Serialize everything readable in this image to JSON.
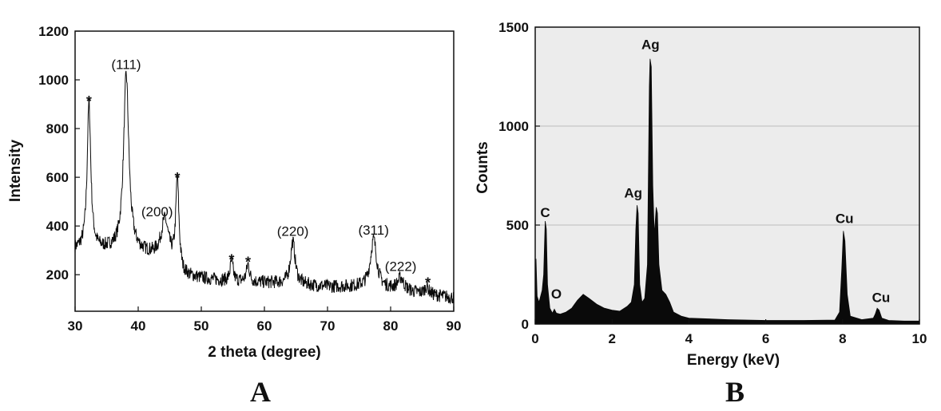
{
  "chart_data": [
    {
      "panel": "A",
      "type": "line",
      "xlabel": "2 theta (degree)",
      "ylabel": "Intensity",
      "xlim": [
        30,
        90
      ],
      "ylim": [
        50,
        1200
      ],
      "xticks": [
        30,
        40,
        50,
        60,
        70,
        80,
        90
      ],
      "yticks": [
        200,
        400,
        600,
        800,
        1000,
        1200
      ],
      "grid": false,
      "baseline": [
        [
          30,
          300
        ],
        [
          36,
          300
        ],
        [
          40,
          290
        ],
        [
          44,
          270
        ],
        [
          47,
          190
        ],
        [
          55,
          170
        ],
        [
          62,
          165
        ],
        [
          70,
          150
        ],
        [
          75,
          150
        ],
        [
          80,
          140
        ],
        [
          85,
          120
        ],
        [
          90,
          105
        ]
      ],
      "peaks": [
        {
          "x": 32.2,
          "y": 900,
          "w": 0.35
        },
        {
          "x": 38.1,
          "y": 1020,
          "w": 0.5
        },
        {
          "x": 44.2,
          "y": 420,
          "w": 0.7
        },
        {
          "x": 46.2,
          "y": 580,
          "w": 0.3
        },
        {
          "x": 54.8,
          "y": 250,
          "w": 0.3
        },
        {
          "x": 57.4,
          "y": 240,
          "w": 0.3
        },
        {
          "x": 64.5,
          "y": 335,
          "w": 0.45
        },
        {
          "x": 77.3,
          "y": 345,
          "w": 0.6
        },
        {
          "x": 81.6,
          "y": 185,
          "w": 0.6
        },
        {
          "x": 85.7,
          "y": 150,
          "w": 0.4
        }
      ],
      "annotations": [
        {
          "text": "*",
          "x": 32.2,
          "y": 925
        },
        {
          "text": "(111)",
          "x": 38.1,
          "y": 1045
        },
        {
          "text": "(200)",
          "x": 43.0,
          "y": 440
        },
        {
          "text": "*",
          "x": 46.2,
          "y": 610
        },
        {
          "text": "*",
          "x": 54.8,
          "y": 275
        },
        {
          "text": "*",
          "x": 57.4,
          "y": 265
        },
        {
          "text": "(220)",
          "x": 64.5,
          "y": 360
        },
        {
          "text": "(311)",
          "x": 77.3,
          "y": 365
        },
        {
          "text": "(222)",
          "x": 81.6,
          "y": 215
        },
        {
          "text": "*",
          "x": 85.9,
          "y": 180
        }
      ]
    },
    {
      "panel": "B",
      "type": "area",
      "xlabel": "Energy (keV)",
      "ylabel": "Counts",
      "xlim": [
        0,
        10
      ],
      "ylim": [
        0,
        1500
      ],
      "xticks": [
        0,
        2,
        4,
        6,
        8,
        10
      ],
      "yticks": [
        0,
        500,
        1000,
        1500
      ],
      "grid": true,
      "background": "#ececec",
      "fill": "#0a0a0a",
      "points": [
        [
          0.0,
          0
        ],
        [
          0.02,
          330
        ],
        [
          0.05,
          140
        ],
        [
          0.1,
          110
        ],
        [
          0.18,
          170
        ],
        [
          0.22,
          250
        ],
        [
          0.26,
          520
        ],
        [
          0.29,
          480
        ],
        [
          0.32,
          200
        ],
        [
          0.38,
          80
        ],
        [
          0.45,
          55
        ],
        [
          0.5,
          75
        ],
        [
          0.55,
          55
        ],
        [
          0.65,
          50
        ],
        [
          0.8,
          60
        ],
        [
          0.95,
          80
        ],
        [
          1.1,
          120
        ],
        [
          1.25,
          150
        ],
        [
          1.4,
          130
        ],
        [
          1.6,
          100
        ],
        [
          1.8,
          80
        ],
        [
          2.0,
          70
        ],
        [
          2.2,
          65
        ],
        [
          2.4,
          90
        ],
        [
          2.5,
          110
        ],
        [
          2.58,
          200
        ],
        [
          2.62,
          480
        ],
        [
          2.65,
          600
        ],
        [
          2.68,
          560
        ],
        [
          2.72,
          200
        ],
        [
          2.78,
          110
        ],
        [
          2.85,
          130
        ],
        [
          2.92,
          300
        ],
        [
          2.97,
          1200
        ],
        [
          2.99,
          1340
        ],
        [
          3.02,
          1300
        ],
        [
          3.06,
          700
        ],
        [
          3.1,
          450
        ],
        [
          3.15,
          590
        ],
        [
          3.18,
          560
        ],
        [
          3.22,
          300
        ],
        [
          3.3,
          170
        ],
        [
          3.4,
          150
        ],
        [
          3.5,
          110
        ],
        [
          3.6,
          60
        ],
        [
          3.8,
          40
        ],
        [
          4.0,
          30
        ],
        [
          5.0,
          22
        ],
        [
          6.0,
          18
        ],
        [
          7.0,
          18
        ],
        [
          7.8,
          20
        ],
        [
          7.92,
          60
        ],
        [
          7.98,
          280
        ],
        [
          8.02,
          470
        ],
        [
          8.06,
          420
        ],
        [
          8.12,
          150
        ],
        [
          8.2,
          40
        ],
        [
          8.5,
          22
        ],
        [
          8.8,
          30
        ],
        [
          8.85,
          50
        ],
        [
          8.9,
          80
        ],
        [
          8.95,
          70
        ],
        [
          9.02,
          30
        ],
        [
          9.2,
          18
        ],
        [
          9.6,
          15
        ],
        [
          10.0,
          15
        ]
      ],
      "annotations": [
        {
          "text": "C",
          "x": 0.26,
          "y": 540
        },
        {
          "text": "O",
          "x": 0.55,
          "y": 130
        },
        {
          "text": "Ag",
          "x": 2.55,
          "y": 640
        },
        {
          "text": "Ag",
          "x": 3.0,
          "y": 1390
        },
        {
          "text": "Cu",
          "x": 8.05,
          "y": 510
        },
        {
          "text": "Cu",
          "x": 9.0,
          "y": 110
        }
      ]
    }
  ]
}
